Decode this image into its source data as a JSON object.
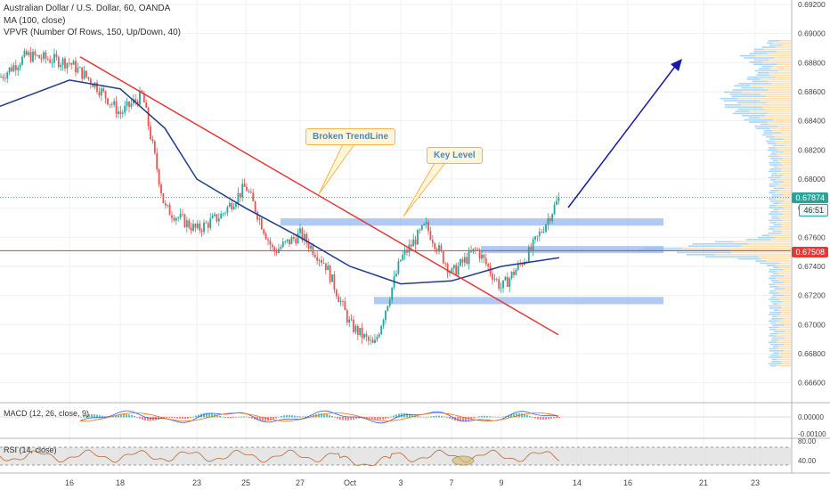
{
  "header": {
    "title": "Australian Dollar / U.S. Dollar, 60, OANDA",
    "indicator_ma": "MA (100, close)",
    "indicator_vpvr": "VPVR (Number Of Rows, 150, Up/Down, 40)"
  },
  "annotations": {
    "broken_trendline": "Broken TrendLine",
    "key_level": "Key Level"
  },
  "price_tags": {
    "last_price": "0.67874",
    "countdown": "46:51",
    "red_line": "0.67508"
  },
  "colors": {
    "bull": "#26a69a",
    "bear": "#ef5350",
    "ma": "#1f3c88",
    "trendline": "#e53935",
    "zone": "#8fb3ef",
    "callout_border": "#f3b44a",
    "arrow": "#1a1aa8",
    "vp_up": "#42a5f5",
    "vp_down": "#ffb74d"
  },
  "chart_data": [
    {
      "type": "candlestick",
      "title": "Australian Dollar / U.S. Dollar, 60, OANDA",
      "x_tick_labels": [
        "16",
        "18",
        "23",
        "25",
        "27",
        "Oct",
        "3",
        "7",
        "9",
        "14",
        "16",
        "21",
        "23"
      ],
      "y_tick_labels": [
        "0.69200",
        "0.69000",
        "0.68800",
        "0.68600",
        "0.68400",
        "0.68200",
        "0.68000",
        "0.67800",
        "0.67600",
        "0.67400",
        "0.67200",
        "0.67000",
        "0.66800",
        "0.66600"
      ],
      "ylim": [
        0.665,
        0.692
      ],
      "last_price": 0.67874,
      "horizontal_line": 0.67508,
      "key_level_zones": [
        {
          "low": 0.6768,
          "high": 0.6773
        },
        {
          "low": 0.675,
          "high": 0.6754
        },
        {
          "low": 0.6714,
          "high": 0.6719
        }
      ],
      "trendline": {
        "start_price": 0.6884,
        "end_price": 0.6693
      },
      "price_path": [
        {
          "x": "16",
          "price": 0.688
        },
        {
          "x": "17",
          "price": 0.6865
        },
        {
          "x": "18",
          "price": 0.6845
        },
        {
          "x": "19",
          "price": 0.6858
        },
        {
          "x": "20",
          "price": 0.678
        },
        {
          "x": "23",
          "price": 0.6765
        },
        {
          "x": "24",
          "price": 0.6775
        },
        {
          "x": "25",
          "price": 0.6795
        },
        {
          "x": "26",
          "price": 0.675
        },
        {
          "x": "27",
          "price": 0.6762
        },
        {
          "x": "30",
          "price": 0.6742
        },
        {
          "x": "Oct",
          "price": 0.67
        },
        {
          "x": "2",
          "price": 0.6685
        },
        {
          "x": "3",
          "price": 0.6745
        },
        {
          "x": "4",
          "price": 0.6768
        },
        {
          "x": "7",
          "price": 0.6735
        },
        {
          "x": "8",
          "price": 0.6752
        },
        {
          "x": "9",
          "price": 0.6725
        },
        {
          "x": "10",
          "price": 0.675
        },
        {
          "x": "11",
          "price": 0.6787
        }
      ],
      "ma_path": [
        {
          "x": "16",
          "price": 0.6868
        },
        {
          "x": "18",
          "price": 0.6862
        },
        {
          "x": "20",
          "price": 0.6835
        },
        {
          "x": "23",
          "price": 0.68
        },
        {
          "x": "25",
          "price": 0.678
        },
        {
          "x": "27",
          "price": 0.676
        },
        {
          "x": "Oct",
          "price": 0.674
        },
        {
          "x": "3",
          "price": 0.6728
        },
        {
          "x": "7",
          "price": 0.673
        },
        {
          "x": "9",
          "price": 0.674
        },
        {
          "x": "11",
          "price": 0.6746
        }
      ]
    },
    {
      "type": "line",
      "title": "MACD (12, 26, close, 9)",
      "y_tick_labels": [
        "0.00000",
        "-0.00100"
      ]
    },
    {
      "type": "line",
      "title": "RSI (14, close)",
      "y_tick_labels": [
        "80.00",
        "40.00"
      ]
    }
  ]
}
